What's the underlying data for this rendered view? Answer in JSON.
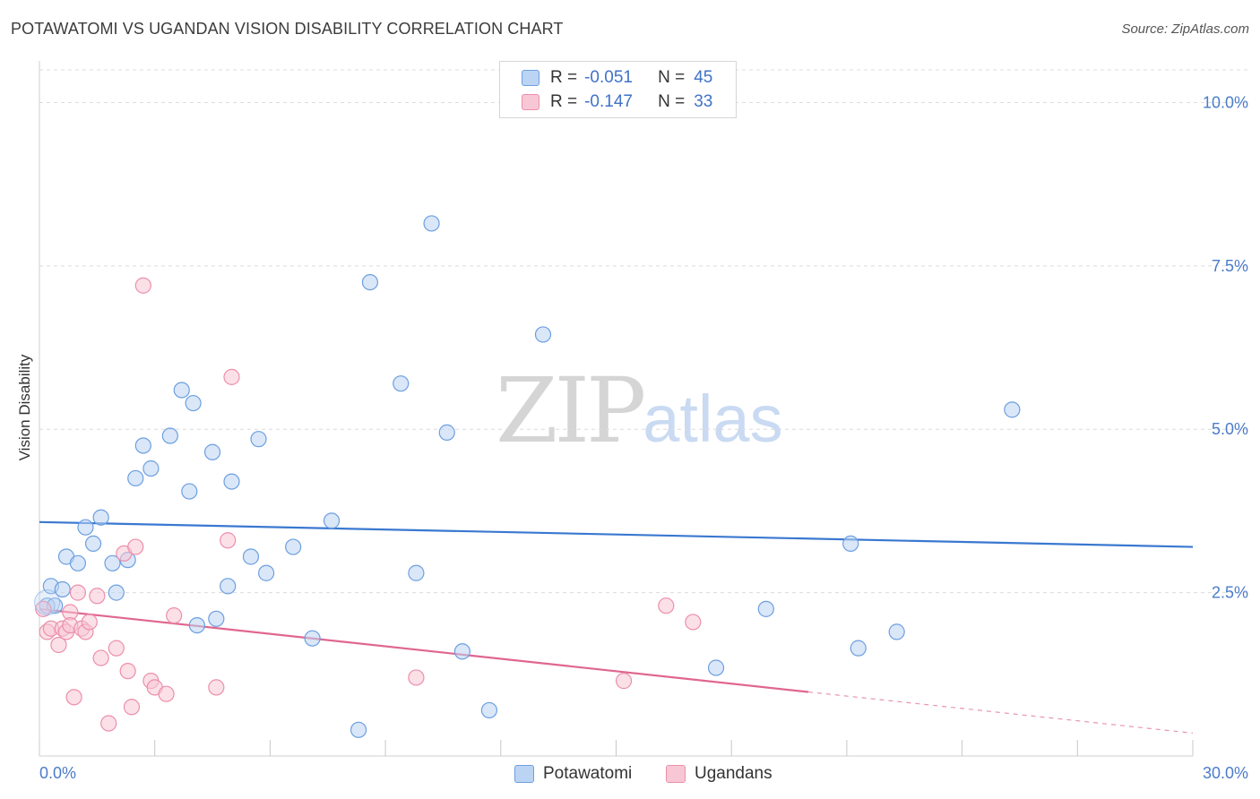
{
  "chart_data": {
    "type": "scatter",
    "title": "POTAWATOMI VS UGANDAN VISION DISABILITY CORRELATION CHART",
    "source": "Source: ZipAtlas.com",
    "xlabel": "",
    "ylabel": "Vision Disability",
    "xlim": [
      0,
      30
    ],
    "ylim": [
      0,
      10.5
    ],
    "x_tick_labels": [
      "0.0%",
      "30.0%"
    ],
    "y_ticks": [
      2.5,
      5.0,
      7.5,
      10.0
    ],
    "y_tick_labels": [
      "2.5%",
      "5.0%",
      "7.5%",
      "10.0%"
    ],
    "grid": true,
    "legend": {
      "series": [
        {
          "r_label": "R = ",
          "r_value": "-0.051",
          "n_label": "N = ",
          "n_value": "45"
        },
        {
          "r_label": "R = ",
          "r_value": "-0.147",
          "n_label": "N = ",
          "n_value": "33"
        }
      ]
    },
    "series": [
      {
        "name": "Potawatomi",
        "color": "#6c9fe0",
        "fill": "#bcd4f3",
        "trend": {
          "x": [
            0,
            30
          ],
          "y": [
            3.58,
            3.2
          ]
        },
        "points": [
          [
            0.2,
            2.3
          ],
          [
            0.3,
            2.6
          ],
          [
            0.4,
            2.3
          ],
          [
            0.6,
            2.55
          ],
          [
            0.7,
            3.05
          ],
          [
            1.0,
            2.95
          ],
          [
            1.2,
            3.5
          ],
          [
            1.4,
            3.25
          ],
          [
            1.6,
            3.65
          ],
          [
            1.9,
            2.95
          ],
          [
            2.0,
            2.5
          ],
          [
            2.3,
            3.0
          ],
          [
            2.5,
            4.25
          ],
          [
            2.7,
            4.75
          ],
          [
            2.9,
            4.4
          ],
          [
            3.4,
            4.9
          ],
          [
            3.7,
            5.6
          ],
          [
            3.9,
            4.05
          ],
          [
            4.0,
            5.4
          ],
          [
            4.1,
            2.0
          ],
          [
            4.5,
            4.65
          ],
          [
            4.6,
            2.1
          ],
          [
            4.9,
            2.6
          ],
          [
            5.0,
            4.2
          ],
          [
            5.5,
            3.05
          ],
          [
            5.7,
            4.85
          ],
          [
            5.9,
            2.8
          ],
          [
            6.6,
            3.2
          ],
          [
            7.1,
            1.8
          ],
          [
            7.6,
            3.6
          ],
          [
            8.3,
            0.4
          ],
          [
            8.6,
            7.25
          ],
          [
            9.4,
            5.7
          ],
          [
            9.8,
            2.8
          ],
          [
            10.2,
            8.15
          ],
          [
            10.6,
            4.95
          ],
          [
            11.0,
            1.6
          ],
          [
            11.7,
            0.7
          ],
          [
            13.1,
            6.45
          ],
          [
            17.6,
            1.35
          ],
          [
            18.9,
            2.25
          ],
          [
            21.1,
            3.25
          ],
          [
            21.3,
            1.65
          ],
          [
            22.3,
            1.9
          ],
          [
            25.3,
            5.3
          ]
        ]
      },
      {
        "name": "Ugandans",
        "color": "#ec8fab",
        "fill": "#f8c7d6",
        "trend": {
          "x": [
            0,
            20
          ],
          "y": [
            2.25,
            0.98
          ]
        },
        "trend_dashed": {
          "x": [
            20,
            30
          ],
          "y": [
            0.98,
            0.35
          ]
        },
        "points": [
          [
            0.1,
            2.25
          ],
          [
            0.2,
            1.9
          ],
          [
            0.3,
            1.95
          ],
          [
            0.5,
            1.7
          ],
          [
            0.6,
            1.95
          ],
          [
            0.7,
            1.9
          ],
          [
            0.8,
            2.2
          ],
          [
            0.8,
            2.0
          ],
          [
            0.9,
            0.9
          ],
          [
            1.0,
            2.5
          ],
          [
            1.1,
            1.95
          ],
          [
            1.2,
            1.9
          ],
          [
            1.3,
            2.05
          ],
          [
            1.5,
            2.45
          ],
          [
            1.6,
            1.5
          ],
          [
            1.8,
            0.5
          ],
          [
            2.0,
            1.65
          ],
          [
            2.2,
            3.1
          ],
          [
            2.3,
            1.3
          ],
          [
            2.4,
            0.75
          ],
          [
            2.5,
            3.2
          ],
          [
            2.7,
            7.2
          ],
          [
            2.9,
            1.15
          ],
          [
            3.0,
            1.05
          ],
          [
            3.3,
            0.95
          ],
          [
            3.5,
            2.15
          ],
          [
            4.6,
            1.05
          ],
          [
            4.9,
            3.3
          ],
          [
            5.0,
            5.8
          ],
          [
            9.8,
            1.2
          ],
          [
            15.2,
            1.15
          ],
          [
            16.3,
            2.3
          ],
          [
            17.0,
            2.05
          ]
        ]
      }
    ]
  }
}
